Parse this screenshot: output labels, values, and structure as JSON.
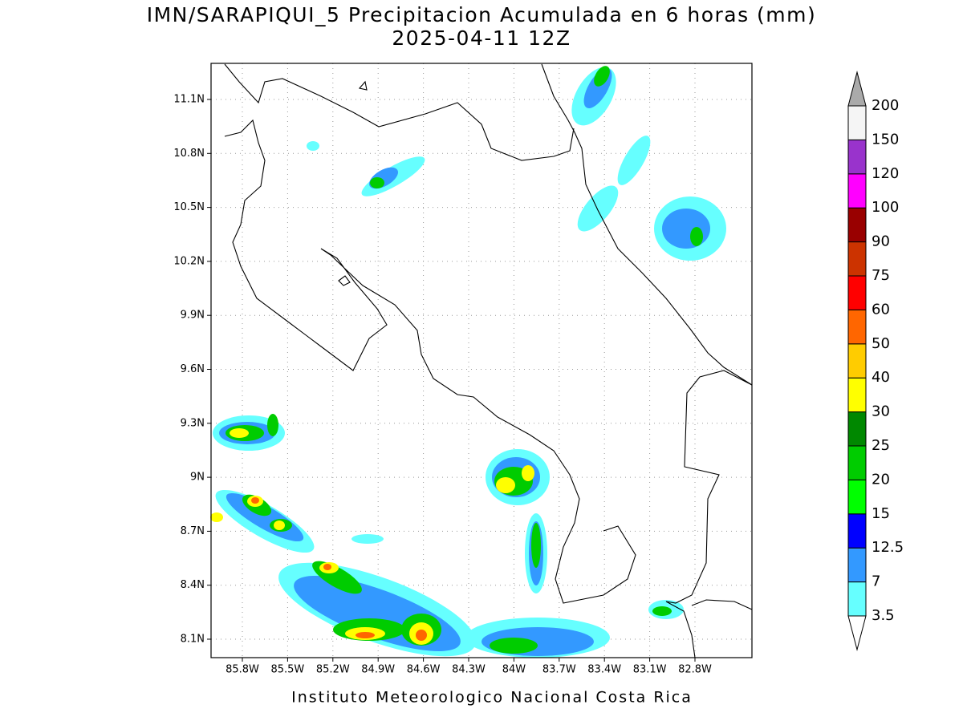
{
  "title": "IMN/SARAPIQUI_5 Precipitacion Acumulada en 6 horas (mm)",
  "subtitle": "2025-04-11 12Z",
  "map": {
    "lat_labels": [
      "11.1N",
      "10.8N",
      "10.5N",
      "10.2N",
      "9.9N",
      "9.6N",
      "9.3N",
      "9N",
      "8.7N",
      "8.4N",
      "8.1N"
    ],
    "lon_labels": [
      "85.8W",
      "85.5W",
      "85.2W",
      "84.9W",
      "84.6W",
      "84.3W",
      "84W",
      "83.7W",
      "83.4W",
      "83.1W",
      "82.8W"
    ]
  },
  "colorbar": {
    "levels": [
      3.5,
      7,
      12.5,
      15,
      20,
      25,
      30,
      40,
      50,
      60,
      75,
      90,
      100,
      120,
      150,
      200
    ],
    "colors": [
      "#66ffff",
      "#3399ff",
      "#0000ff",
      "#00ff00",
      "#00cc00",
      "#008800",
      "#ffff00",
      "#ffcc00",
      "#ff6600",
      "#ff0000",
      "#cc3300",
      "#990000",
      "#ff00ff",
      "#9933cc",
      "#f5f5f5"
    ],
    "under_color": "#ffffff",
    "over_color": "#aaaaaa"
  },
  "footer": "Instituto Meteorologico Nacional Costa Rica"
}
